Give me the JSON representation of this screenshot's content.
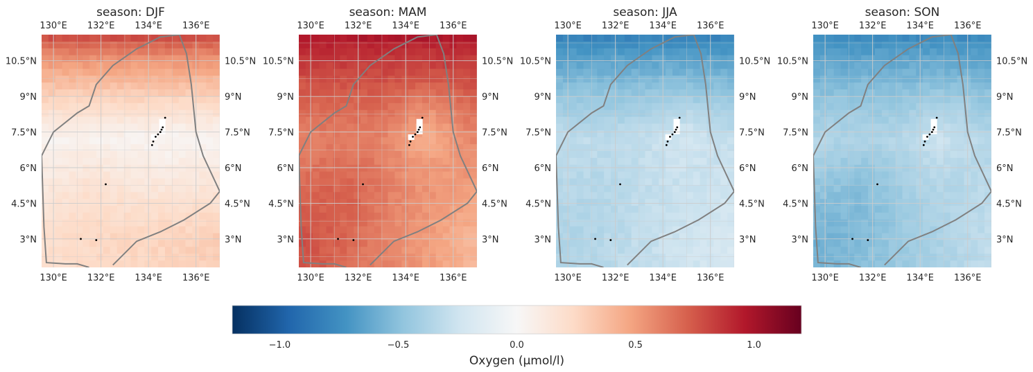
{
  "figure": {
    "colorbar_label": "Oxygen (µmol/l)",
    "colormap": "RdBu_r",
    "colorbar_ticks": [
      {
        "value": -1.0,
        "label": "−1.0"
      },
      {
        "value": -0.5,
        "label": "−0.5"
      },
      {
        "value": 0.0,
        "label": "0.0"
      },
      {
        "value": 0.5,
        "label": "0.5"
      },
      {
        "value": 1.0,
        "label": "1.0"
      }
    ],
    "value_range": [
      -1.2,
      1.2
    ],
    "lon_range": [
      129.5,
      137.0
    ],
    "lat_range": [
      1.8,
      11.6
    ],
    "lon_ticks": [
      {
        "value": 130,
        "label": "130°E"
      },
      {
        "value": 132,
        "label": "132°E"
      },
      {
        "value": 134,
        "label": "134°E"
      },
      {
        "value": 136,
        "label": "136°E"
      }
    ],
    "lat_ticks": [
      {
        "value": 3,
        "label": "3°N"
      },
      {
        "value": 4.5,
        "label": "4.5°N"
      },
      {
        "value": 6,
        "label": "6°N"
      },
      {
        "value": 7.5,
        "label": "7.5°N"
      },
      {
        "value": 9,
        "label": "9°N"
      },
      {
        "value": 10.5,
        "label": "10.5°N"
      }
    ],
    "colors": {
      "boundary": "#808080",
      "gridline": "#cccccc",
      "text": "#262626",
      "land": "#000000"
    }
  },
  "panels": [
    {
      "id": "djf",
      "title": "season: DJF",
      "north_value": 0.85,
      "center_value": 0.03,
      "southwest_value": 0.2,
      "southeast_value": 0.3
    },
    {
      "id": "mam",
      "title": "season: MAM",
      "north_value": 1.0,
      "center_value": 0.6,
      "southwest_value": 0.78,
      "southeast_value": 0.4
    },
    {
      "id": "jja",
      "title": "season: JJA",
      "north_value": -0.85,
      "center_value": -0.3,
      "southwest_value": -0.38,
      "southeast_value": -0.2
    },
    {
      "id": "son",
      "title": "season: SON",
      "north_value": -0.8,
      "center_value": -0.35,
      "southwest_value": -0.58,
      "southeast_value": -0.3
    }
  ],
  "boundary_path": [
    [
      129.5,
      6.5
    ],
    [
      130.0,
      7.5
    ],
    [
      131.0,
      8.3
    ],
    [
      131.5,
      8.6
    ],
    [
      131.8,
      9.5
    ],
    [
      132.5,
      10.3
    ],
    [
      133.5,
      11.0
    ],
    [
      134.5,
      11.5
    ],
    [
      135.3,
      11.6
    ],
    [
      135.6,
      10.8
    ],
    [
      135.8,
      9.5
    ],
    [
      136.0,
      7.5
    ],
    [
      136.3,
      6.5
    ],
    [
      137.0,
      5.0
    ],
    [
      136.6,
      4.5
    ],
    [
      135.5,
      3.8
    ],
    [
      134.5,
      3.3
    ],
    [
      133.5,
      2.9
    ],
    [
      132.8,
      2.2
    ],
    [
      132.5,
      1.9
    ]
  ],
  "boundary_path_south": [
    [
      129.55,
      5.0
    ],
    [
      129.6,
      3.5
    ],
    [
      129.7,
      2.0
    ],
    [
      130.5,
      1.95
    ],
    [
      131.0,
      1.95
    ],
    [
      131.5,
      1.8
    ]
  ],
  "land_points": [
    [
      134.3,
      7.3
    ],
    [
      134.4,
      7.4
    ],
    [
      134.5,
      7.5
    ],
    [
      134.55,
      7.6
    ],
    [
      134.6,
      7.7
    ],
    [
      134.7,
      8.1
    ],
    [
      134.2,
      7.1
    ],
    [
      134.15,
      6.95
    ],
    [
      132.2,
      5.3
    ],
    [
      131.15,
      3.0
    ],
    [
      131.8,
      2.95
    ]
  ]
}
